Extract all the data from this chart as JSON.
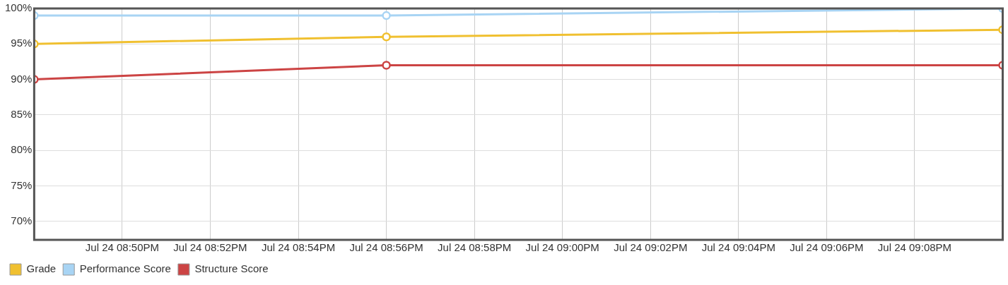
{
  "chart_data": {
    "type": "line",
    "x": [
      "--07-24T20:48",
      "--07-24T20:56",
      "--07-24T21:10"
    ],
    "series": [
      {
        "name": "Grade",
        "color": "#f0c030",
        "values": [
          95,
          96,
          97
        ]
      },
      {
        "name": "Performance Score",
        "color": "#a8d4f4",
        "values": [
          99,
          99,
          100
        ]
      },
      {
        "name": "Structure Score",
        "color": "#cc4444",
        "values": [
          90,
          92,
          92
        ]
      }
    ],
    "xlim": [
      "--07-24T20:48",
      "--07-24T21:10"
    ],
    "xticks": [
      {
        "value": "--07-24T20:50",
        "label": "Jul 24 08:50PM"
      },
      {
        "value": "--07-24T20:52",
        "label": "Jul 24 08:52PM"
      },
      {
        "value": "--07-24T20:54",
        "label": "Jul 24 08:54PM"
      },
      {
        "value": "--07-24T20:56",
        "label": "Jul 24 08:56PM"
      },
      {
        "value": "--07-24T20:58",
        "label": "Jul 24 08:58PM"
      },
      {
        "value": "--07-24T21:00",
        "label": "Jul 24 09:00PM"
      },
      {
        "value": "--07-24T21:02",
        "label": "Jul 24 09:02PM"
      },
      {
        "value": "--07-24T21:04",
        "label": "Jul 24 09:04PM"
      },
      {
        "value": "--07-24T21:06",
        "label": "Jul 24 09:06PM"
      },
      {
        "value": "--07-24T21:08",
        "label": "Jul 24 09:08PM"
      }
    ],
    "ylim": [
      67.4,
      100
    ],
    "yticks": [
      {
        "value": 70,
        "label": "70%"
      },
      {
        "value": 75,
        "label": "75%"
      },
      {
        "value": 80,
        "label": "80%"
      },
      {
        "value": 85,
        "label": "85%"
      },
      {
        "value": 90,
        "label": "90%"
      },
      {
        "value": 95,
        "label": "95%"
      },
      {
        "value": 100,
        "label": "100%"
      }
    ],
    "grid": true,
    "legend": "bottom left",
    "marker": "circle",
    "line_style": "solid"
  }
}
